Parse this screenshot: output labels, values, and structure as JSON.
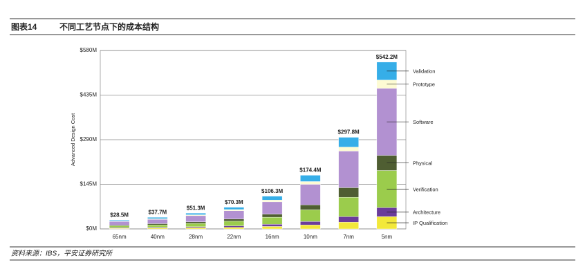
{
  "figure_label": "图表14",
  "source": "资料来源：IBS，平安证券研究所",
  "chart_data": {
    "type": "stacked_bar",
    "title": "不同工艺节点下的成本结构",
    "ylabel": "Advanced Design Cost",
    "categories": [
      "65nm",
      "40nm",
      "28nm",
      "22nm",
      "16nm",
      "10nm",
      "7nm",
      "5nm"
    ],
    "series": [
      {
        "name": "IP Qualification",
        "color": "#f2e83a",
        "values": [
          2,
          3,
          4,
          5,
          8,
          13,
          22,
          40
        ]
      },
      {
        "name": "Architecture",
        "color": "#6b3c9b",
        "values": [
          2,
          2,
          3,
          5,
          7,
          11,
          18,
          29
        ]
      },
      {
        "name": "Verification",
        "color": "#9bcc4c",
        "values": [
          6,
          8,
          11,
          15,
          23,
          38,
          63,
          121
        ]
      },
      {
        "name": "Physical",
        "color": "#4f5e32",
        "values": [
          3,
          4,
          5,
          7,
          10,
          16,
          31,
          49
        ]
      },
      {
        "name": "Software",
        "color": "#b291d1",
        "values": [
          11,
          14,
          20,
          27,
          40,
          67,
          119,
          218
        ]
      },
      {
        "name": "Prototype",
        "color": "#fdfbd3",
        "values": [
          1.5,
          2,
          3,
          4,
          6,
          9,
          13,
          27
        ]
      },
      {
        "name": "Validation",
        "color": "#36aee8",
        "values": [
          3,
          4.7,
          5.3,
          7.3,
          12.3,
          20.4,
          31.8,
          58.2
        ]
      }
    ],
    "totals": {
      "values": [
        28.5,
        37.7,
        51.3,
        70.3,
        106.3,
        174.4,
        297.8,
        542.2
      ],
      "value_labels": [
        "$28.5M",
        "$37.7M",
        "$51.3M",
        "$70.3M",
        "$106.3M",
        "$174.4M",
        "$297.8M",
        "$542.2M"
      ]
    },
    "ylim": [
      0,
      580
    ],
    "yticks": [
      {
        "value": 0,
        "label": "$0M"
      },
      {
        "value": 145,
        "label": "$145M"
      },
      {
        "value": 290,
        "label": "$290M"
      },
      {
        "value": 435,
        "label": "$435M"
      },
      {
        "value": 580,
        "label": "$580M"
      }
    ],
    "grid": true
  }
}
